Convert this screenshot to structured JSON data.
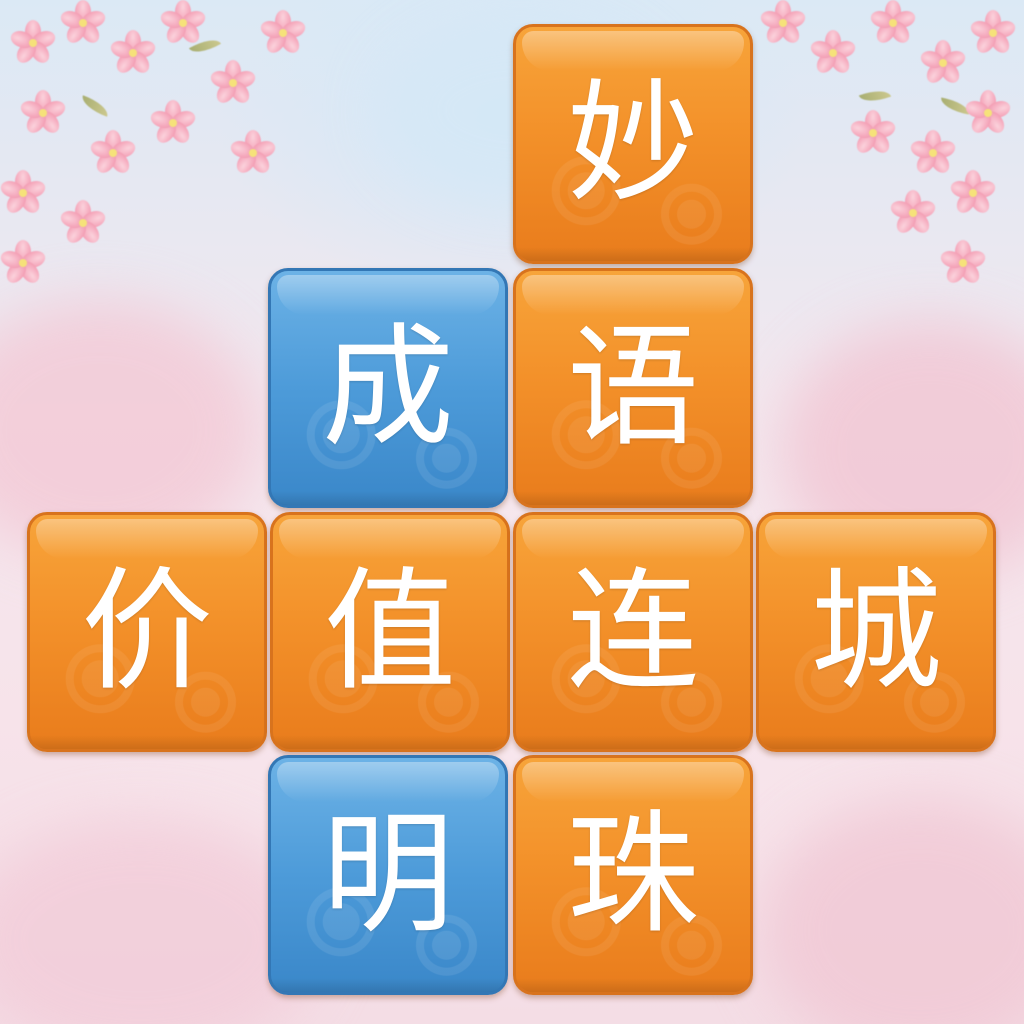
{
  "board": {
    "tiles": [
      {
        "char": "妙",
        "color": "orange"
      },
      {
        "char": "成",
        "color": "blue"
      },
      {
        "char": "语",
        "color": "orange"
      },
      {
        "char": "价",
        "color": "orange"
      },
      {
        "char": "值",
        "color": "orange"
      },
      {
        "char": "连",
        "color": "orange"
      },
      {
        "char": "城",
        "color": "orange"
      },
      {
        "char": "明",
        "color": "blue"
      },
      {
        "char": "珠",
        "color": "orange"
      }
    ]
  },
  "palette": {
    "orange": "#f3912a",
    "blue": "#4d9bd9",
    "glyph": "#ffffff",
    "blossom": "#f4a3b8"
  }
}
